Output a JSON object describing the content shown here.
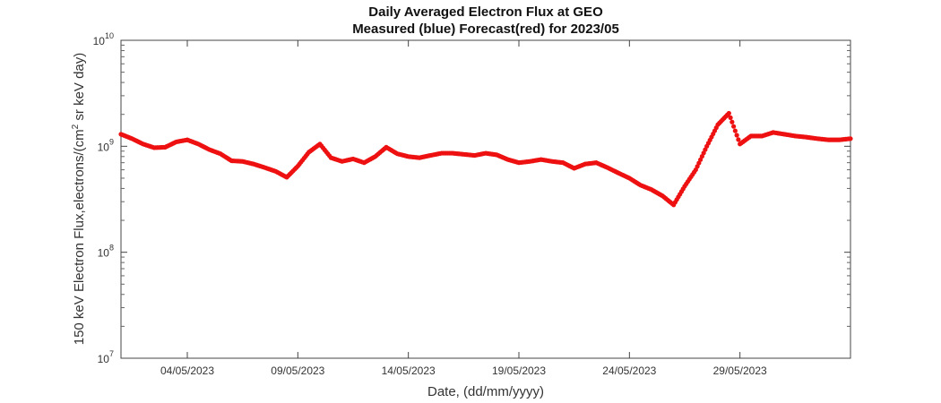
{
  "chart_data": {
    "type": "scatter",
    "title": "Daily Averaged Electron Flux at GEO",
    "subtitle": "Measured (blue) Forecast(red) for 2023/05",
    "xlabel": "Date, (dd/mm/yyyy)",
    "ylabel": "150 keV Electron Flux,electrons/(cm",
    "ylabel_sup": "2",
    "ylabel_tail": " sr keV day)",
    "yscale": "log",
    "xlim": [
      "2023-05-01",
      "2023-06-03"
    ],
    "ylim": [
      10000000,
      10000000000
    ],
    "x_ticks": [
      "04/05/2023",
      "09/05/2023",
      "14/05/2023",
      "19/05/2023",
      "24/05/2023",
      "29/05/2023"
    ],
    "y_ticks": [
      {
        "base": "10",
        "exp": "7"
      },
      {
        "base": "10",
        "exp": "8"
      },
      {
        "base": "10",
        "exp": "9"
      },
      {
        "base": "10",
        "exp": "10"
      }
    ],
    "grid": false,
    "series": [
      {
        "color": "#ee1111",
        "points": [
          [
            "2023-05-01",
            1300000000.0
          ],
          [
            "2023-05-01T12:00",
            1180000000.0
          ],
          [
            "2023-05-02",
            1050000000.0
          ],
          [
            "2023-05-02T12:00",
            970000000.0
          ],
          [
            "2023-05-03",
            980000000.0
          ],
          [
            "2023-05-03T12:00",
            1100000000.0
          ],
          [
            "2023-05-04",
            1150000000.0
          ],
          [
            "2023-05-04T12:00",
            1050000000.0
          ],
          [
            "2023-05-05",
            930000000.0
          ],
          [
            "2023-05-05T12:00",
            850000000.0
          ],
          [
            "2023-05-06",
            730000000.0
          ],
          [
            "2023-05-06T12:00",
            720000000.0
          ],
          [
            "2023-05-07",
            680000000.0
          ],
          [
            "2023-05-07T12:00",
            630000000.0
          ],
          [
            "2023-05-08",
            580000000.0
          ],
          [
            "2023-05-08T12:00",
            510000000.0
          ],
          [
            "2023-05-09",
            650000000.0
          ],
          [
            "2023-05-09T12:00",
            880000000.0
          ],
          [
            "2023-05-10",
            1050000000.0
          ],
          [
            "2023-05-10T12:00",
            780000000.0
          ],
          [
            "2023-05-11",
            720000000.0
          ],
          [
            "2023-05-11T12:00",
            760000000.0
          ],
          [
            "2023-05-12",
            700000000.0
          ],
          [
            "2023-05-12T12:00",
            800000000.0
          ],
          [
            "2023-05-13",
            980000000.0
          ],
          [
            "2023-05-13T12:00",
            850000000.0
          ],
          [
            "2023-05-14",
            800000000.0
          ],
          [
            "2023-05-14T12:00",
            780000000.0
          ],
          [
            "2023-05-15",
            820000000.0
          ],
          [
            "2023-05-15T12:00",
            860000000.0
          ],
          [
            "2023-05-16",
            860000000.0
          ],
          [
            "2023-05-16T12:00",
            840000000.0
          ],
          [
            "2023-05-17",
            820000000.0
          ],
          [
            "2023-05-17T12:00",
            860000000.0
          ],
          [
            "2023-05-18",
            830000000.0
          ],
          [
            "2023-05-18T12:00",
            750000000.0
          ],
          [
            "2023-05-19",
            700000000.0
          ],
          [
            "2023-05-19T12:00",
            720000000.0
          ],
          [
            "2023-05-20",
            750000000.0
          ],
          [
            "2023-05-20T12:00",
            720000000.0
          ],
          [
            "2023-05-21",
            700000000.0
          ],
          [
            "2023-05-21T12:00",
            620000000.0
          ],
          [
            "2023-05-22",
            680000000.0
          ],
          [
            "2023-05-22T12:00",
            700000000.0
          ],
          [
            "2023-05-23",
            630000000.0
          ],
          [
            "2023-05-23T12:00",
            560000000.0
          ],
          [
            "2023-05-24",
            500000000.0
          ],
          [
            "2023-05-24T12:00",
            430000000.0
          ],
          [
            "2023-05-25",
            390000000.0
          ],
          [
            "2023-05-25T12:00",
            340000000.0
          ],
          [
            "2023-05-26",
            280000000.0
          ],
          [
            "2023-05-26T12:00",
            420000000.0
          ],
          [
            "2023-05-27",
            600000000.0
          ],
          [
            "2023-05-27T12:00",
            1000000000.0
          ],
          [
            "2023-05-28",
            1600000000.0
          ],
          [
            "2023-05-28T12:00",
            2050000000.0
          ],
          [
            "2023-05-29",
            1050000000.0
          ],
          [
            "2023-05-29T12:00",
            1250000000.0
          ],
          [
            "2023-05-30",
            1250000000.0
          ],
          [
            "2023-05-30T12:00",
            1350000000.0
          ],
          [
            "2023-05-31",
            1300000000.0
          ],
          [
            "2023-05-31T12:00",
            1250000000.0
          ],
          [
            "2023-06-01",
            1220000000.0
          ],
          [
            "2023-06-01T12:00",
            1180000000.0
          ],
          [
            "2023-06-02",
            1150000000.0
          ],
          [
            "2023-06-02T12:00",
            1150000000.0
          ],
          [
            "2023-06-03",
            1180000000.0
          ]
        ]
      }
    ]
  }
}
